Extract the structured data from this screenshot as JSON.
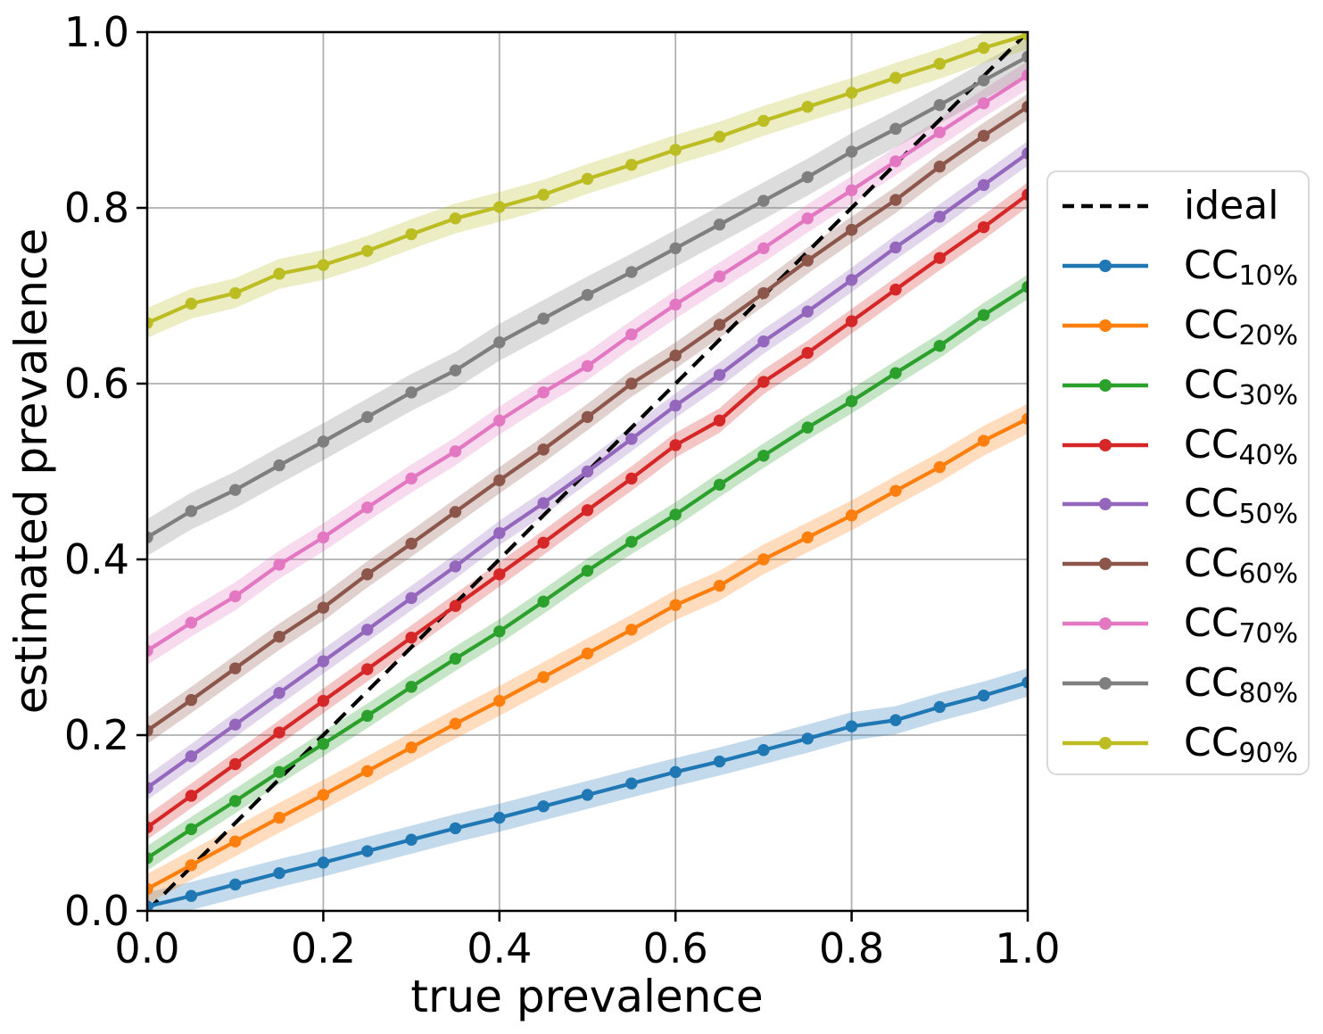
{
  "figure": {
    "background": "#ffffff",
    "text_color": "#000000",
    "grid_color": "#b0b0b0",
    "spine_color": "#000000",
    "legend_border_color": "#d9d9d9"
  },
  "chart_data": {
    "type": "line",
    "title": "",
    "xlabel": "true prevalence",
    "ylabel": "estimated prevalence",
    "xlim": [
      0.0,
      1.0
    ],
    "ylim": [
      0.0,
      1.0
    ],
    "grid": true,
    "legend_position": "right-outside",
    "xticks": [
      0.0,
      0.2,
      0.4,
      0.6,
      0.8,
      1.0
    ],
    "xtick_labels": [
      "0.0",
      "0.2",
      "0.4",
      "0.6",
      "0.8",
      "1.0"
    ],
    "yticks": [
      0.0,
      0.2,
      0.4,
      0.6,
      0.8,
      1.0
    ],
    "ytick_labels": [
      "0.0",
      "0.2",
      "0.4",
      "0.6",
      "0.8",
      "1.0"
    ],
    "x": [
      0.0,
      0.05,
      0.1,
      0.15,
      0.2,
      0.25,
      0.3,
      0.35,
      0.4,
      0.45,
      0.5,
      0.55,
      0.6,
      0.65,
      0.7,
      0.75,
      0.8,
      0.85,
      0.9,
      0.95,
      1.0
    ],
    "reference_line": {
      "label": "ideal",
      "color": "#000000",
      "style": "dashed",
      "points": [
        [
          0.0,
          0.0
        ],
        [
          1.0,
          1.0
        ]
      ]
    },
    "series": [
      {
        "label": "CC",
        "sub": "10%",
        "color": "#1f77b4",
        "band_halfwidth": 0.016,
        "values": [
          0.005,
          0.017,
          0.03,
          0.043,
          0.055,
          0.068,
          0.081,
          0.094,
          0.106,
          0.119,
          0.132,
          0.145,
          0.158,
          0.17,
          0.183,
          0.196,
          0.21,
          0.217,
          0.232,
          0.245,
          0.26
        ]
      },
      {
        "label": "CC",
        "sub": "20%",
        "color": "#ff7f0e",
        "band_halfwidth": 0.017,
        "values": [
          0.025,
          0.052,
          0.079,
          0.106,
          0.132,
          0.159,
          0.186,
          0.213,
          0.239,
          0.266,
          0.293,
          0.32,
          0.348,
          0.37,
          0.4,
          0.425,
          0.45,
          0.478,
          0.505,
          0.535,
          0.56
        ]
      },
      {
        "label": "CC",
        "sub": "30%",
        "color": "#2ca02c",
        "band_halfwidth": 0.014,
        "values": [
          0.06,
          0.093,
          0.125,
          0.158,
          0.19,
          0.222,
          0.255,
          0.287,
          0.318,
          0.352,
          0.387,
          0.42,
          0.451,
          0.485,
          0.518,
          0.55,
          0.58,
          0.612,
          0.643,
          0.678,
          0.71
        ]
      },
      {
        "label": "CC",
        "sub": "40%",
        "color": "#d62728",
        "band_halfwidth": 0.014,
        "values": [
          0.095,
          0.131,
          0.167,
          0.203,
          0.239,
          0.275,
          0.311,
          0.347,
          0.383,
          0.419,
          0.456,
          0.492,
          0.53,
          0.558,
          0.602,
          0.635,
          0.671,
          0.707,
          0.743,
          0.778,
          0.815
        ]
      },
      {
        "label": "CC",
        "sub": "50%",
        "color": "#9467bd",
        "band_halfwidth": 0.014,
        "values": [
          0.14,
          0.176,
          0.212,
          0.248,
          0.284,
          0.32,
          0.356,
          0.392,
          0.43,
          0.464,
          0.5,
          0.537,
          0.575,
          0.61,
          0.648,
          0.682,
          0.718,
          0.755,
          0.79,
          0.826,
          0.862
        ]
      },
      {
        "label": "CC",
        "sub": "60%",
        "color": "#8c564b",
        "band_halfwidth": 0.015,
        "values": [
          0.205,
          0.24,
          0.276,
          0.312,
          0.345,
          0.383,
          0.418,
          0.454,
          0.49,
          0.525,
          0.562,
          0.6,
          0.632,
          0.667,
          0.703,
          0.74,
          0.775,
          0.809,
          0.847,
          0.882,
          0.915
        ]
      },
      {
        "label": "CC",
        "sub": "70%",
        "color": "#e377c2",
        "band_halfwidth": 0.016,
        "values": [
          0.296,
          0.328,
          0.358,
          0.394,
          0.425,
          0.459,
          0.492,
          0.523,
          0.558,
          0.59,
          0.62,
          0.656,
          0.69,
          0.722,
          0.754,
          0.788,
          0.82,
          0.853,
          0.886,
          0.919,
          0.951
        ]
      },
      {
        "label": "CC",
        "sub": "80%",
        "color": "#7f7f7f",
        "band_halfwidth": 0.021,
        "values": [
          0.425,
          0.455,
          0.479,
          0.507,
          0.534,
          0.562,
          0.59,
          0.615,
          0.647,
          0.674,
          0.701,
          0.727,
          0.754,
          0.781,
          0.808,
          0.835,
          0.864,
          0.89,
          0.917,
          0.945,
          0.972
        ]
      },
      {
        "label": "CC",
        "sub": "90%",
        "color": "#bcbd22",
        "band_halfwidth": 0.017,
        "values": [
          0.669,
          0.691,
          0.703,
          0.725,
          0.735,
          0.751,
          0.77,
          0.788,
          0.801,
          0.815,
          0.833,
          0.849,
          0.866,
          0.881,
          0.899,
          0.915,
          0.931,
          0.948,
          0.964,
          0.982,
          0.997
        ]
      }
    ]
  }
}
